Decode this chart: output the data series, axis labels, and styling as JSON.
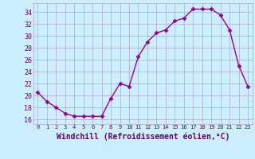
{
  "x": [
    0,
    1,
    2,
    3,
    4,
    5,
    6,
    7,
    8,
    9,
    10,
    11,
    12,
    13,
    14,
    15,
    16,
    17,
    18,
    19,
    20,
    21,
    22,
    23
  ],
  "y": [
    20.5,
    19.0,
    18.0,
    17.0,
    16.5,
    16.5,
    16.5,
    16.5,
    19.5,
    22.0,
    21.5,
    26.5,
    29.0,
    30.5,
    31.0,
    32.5,
    33.0,
    34.5,
    34.5,
    34.5,
    33.5,
    31.0,
    25.0,
    21.5
  ],
  "line_color": "#990099",
  "marker": "D",
  "markersize": 2.5,
  "linewidth": 1.0,
  "background_color": "#cceeff",
  "grid_color": "#aaaacc",
  "xlabel": "Windchill (Refroidissement éolien,°C)",
  "xlabel_fontsize": 7,
  "yticks": [
    16,
    18,
    20,
    22,
    24,
    26,
    28,
    30,
    32,
    34
  ],
  "xtick_labels": [
    "0",
    "1",
    "2",
    "3",
    "4",
    "5",
    "6",
    "7",
    "8",
    "9",
    "10",
    "11",
    "12",
    "13",
    "14",
    "15",
    "16",
    "17",
    "18",
    "19",
    "20",
    "21",
    "22",
    "23"
  ],
  "ylim": [
    15.2,
    35.5
  ],
  "xlim": [
    -0.5,
    23.5
  ]
}
